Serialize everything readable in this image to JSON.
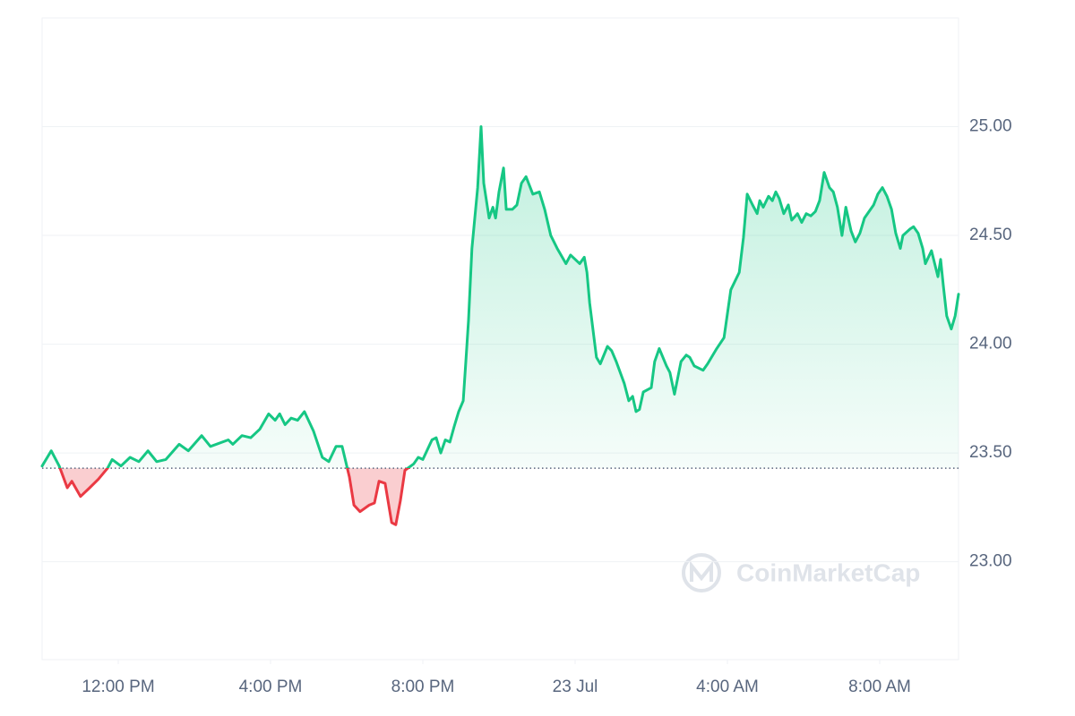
{
  "chart_data": {
    "type": "line",
    "x": [
      0,
      0.24,
      0.45,
      0.66,
      0.78,
      1.01,
      1.25,
      1.48,
      1.72,
      1.84,
      2.07,
      2.31,
      2.54,
      2.78,
      3.01,
      3.25,
      3.6,
      3.84,
      4.19,
      4.42,
      4.89,
      5.01,
      5.25,
      5.48,
      5.72,
      5.95,
      6.12,
      6.24,
      6.38,
      6.54,
      6.71,
      6.89,
      7.13,
      7.36,
      7.53,
      7.72,
      7.88,
      8.07,
      8.19,
      8.35,
      8.59,
      8.73,
      8.85,
      9.01,
      9.18,
      9.29,
      9.41,
      9.53,
      9.76,
      9.88,
      10.0,
      10.24,
      10.35,
      10.47,
      10.59,
      10.71,
      10.82,
      10.94,
      11.06,
      11.13,
      11.2,
      11.29,
      11.44,
      11.53,
      11.6,
      11.74,
      11.84,
      11.91,
      12.0,
      12.12,
      12.19,
      12.35,
      12.47,
      12.59,
      12.71,
      12.89,
      13.06,
      13.2,
      13.36,
      13.53,
      13.76,
      13.88,
      14.12,
      14.24,
      14.31,
      14.38,
      14.56,
      14.66,
      14.85,
      14.96,
      15.08,
      15.29,
      15.41,
      15.51,
      15.6,
      15.69,
      15.79,
      16.0,
      16.09,
      16.21,
      16.4,
      16.49,
      16.61,
      16.78,
      16.92,
      17.01,
      17.13,
      17.36,
      17.48,
      17.72,
      17.91,
      18.0,
      18.09,
      18.31,
      18.42,
      18.52,
      18.66,
      18.78,
      18.85,
      18.94,
      19.08,
      19.18,
      19.27,
      19.36,
      19.48,
      19.6,
      19.69,
      19.84,
      19.95,
      20.07,
      20.19,
      20.31,
      20.42,
      20.54,
      20.68,
      20.78,
      20.89,
      21.01,
      21.11,
      21.25,
      21.36,
      21.48,
      21.6,
      21.84,
      21.95,
      22.07,
      22.19,
      22.31,
      22.42,
      22.54,
      22.61,
      22.8,
      22.89,
      23.01,
      23.13,
      23.2,
      23.36,
      23.53,
      23.6,
      23.67,
      23.76,
      23.88,
      23.98,
      24.07
    ],
    "values": [
      23.44,
      23.51,
      23.44,
      23.34,
      23.37,
      23.3,
      23.34,
      23.38,
      23.43,
      23.47,
      23.44,
      23.48,
      23.46,
      23.51,
      23.46,
      23.47,
      23.54,
      23.51,
      23.58,
      23.53,
      23.56,
      23.54,
      23.58,
      23.57,
      23.61,
      23.68,
      23.65,
      23.68,
      23.63,
      23.66,
      23.65,
      23.69,
      23.6,
      23.48,
      23.46,
      23.53,
      23.53,
      23.39,
      23.26,
      23.23,
      23.26,
      23.27,
      23.37,
      23.36,
      23.18,
      23.17,
      23.28,
      23.42,
      23.45,
      23.48,
      23.47,
      23.56,
      23.57,
      23.5,
      23.56,
      23.55,
      23.62,
      23.69,
      23.74,
      23.92,
      24.11,
      24.44,
      24.72,
      25.0,
      24.74,
      24.58,
      24.63,
      24.58,
      24.7,
      24.81,
      24.62,
      24.62,
      24.64,
      24.74,
      24.77,
      24.69,
      24.7,
      24.62,
      24.5,
      24.44,
      24.37,
      24.41,
      24.37,
      24.4,
      24.33,
      24.19,
      23.94,
      23.91,
      23.99,
      23.97,
      23.92,
      23.82,
      23.74,
      23.76,
      23.69,
      23.7,
      23.78,
      23.8,
      23.92,
      23.98,
      23.9,
      23.87,
      23.77,
      23.92,
      23.95,
      23.94,
      23.9,
      23.88,
      23.91,
      23.98,
      24.03,
      24.14,
      24.25,
      24.33,
      24.49,
      24.69,
      24.64,
      24.6,
      24.66,
      24.63,
      24.68,
      24.66,
      24.7,
      24.67,
      24.6,
      24.64,
      24.57,
      24.6,
      24.56,
      24.6,
      24.59,
      24.61,
      24.66,
      24.79,
      24.72,
      24.7,
      24.63,
      24.5,
      24.63,
      24.52,
      24.47,
      24.51,
      24.58,
      24.64,
      24.69,
      24.72,
      24.68,
      24.62,
      24.51,
      24.44,
      24.5,
      24.53,
      24.54,
      24.51,
      24.44,
      24.37,
      24.43,
      24.31,
      24.39,
      24.27,
      24.13,
      24.07,
      24.13,
      24.23
    ],
    "reference_value": 23.43,
    "color_up": "#16c784",
    "color_down": "#ea3943",
    "xlim": [
      0,
      24.07
    ],
    "xticks": [
      {
        "value": 2,
        "label": "12:00 PM"
      },
      {
        "value": 6,
        "label": "4:00 PM"
      },
      {
        "value": 10,
        "label": "8:00 PM"
      },
      {
        "value": 14,
        "label": "23 Jul"
      },
      {
        "value": 18,
        "label": "4:00 AM"
      },
      {
        "value": 22,
        "label": "8:00 AM"
      }
    ],
    "ylim": [
      22.55,
      25.5
    ],
    "yticks": [
      {
        "value": 23,
        "label": "23.00"
      },
      {
        "value": 23.5,
        "label": "23.50"
      },
      {
        "value": 24,
        "label": "24.00"
      },
      {
        "value": 24.5,
        "label": "24.50"
      },
      {
        "value": 25,
        "label": "25.00"
      }
    ],
    "grid": true,
    "watermark": "CoinMarketCap"
  }
}
